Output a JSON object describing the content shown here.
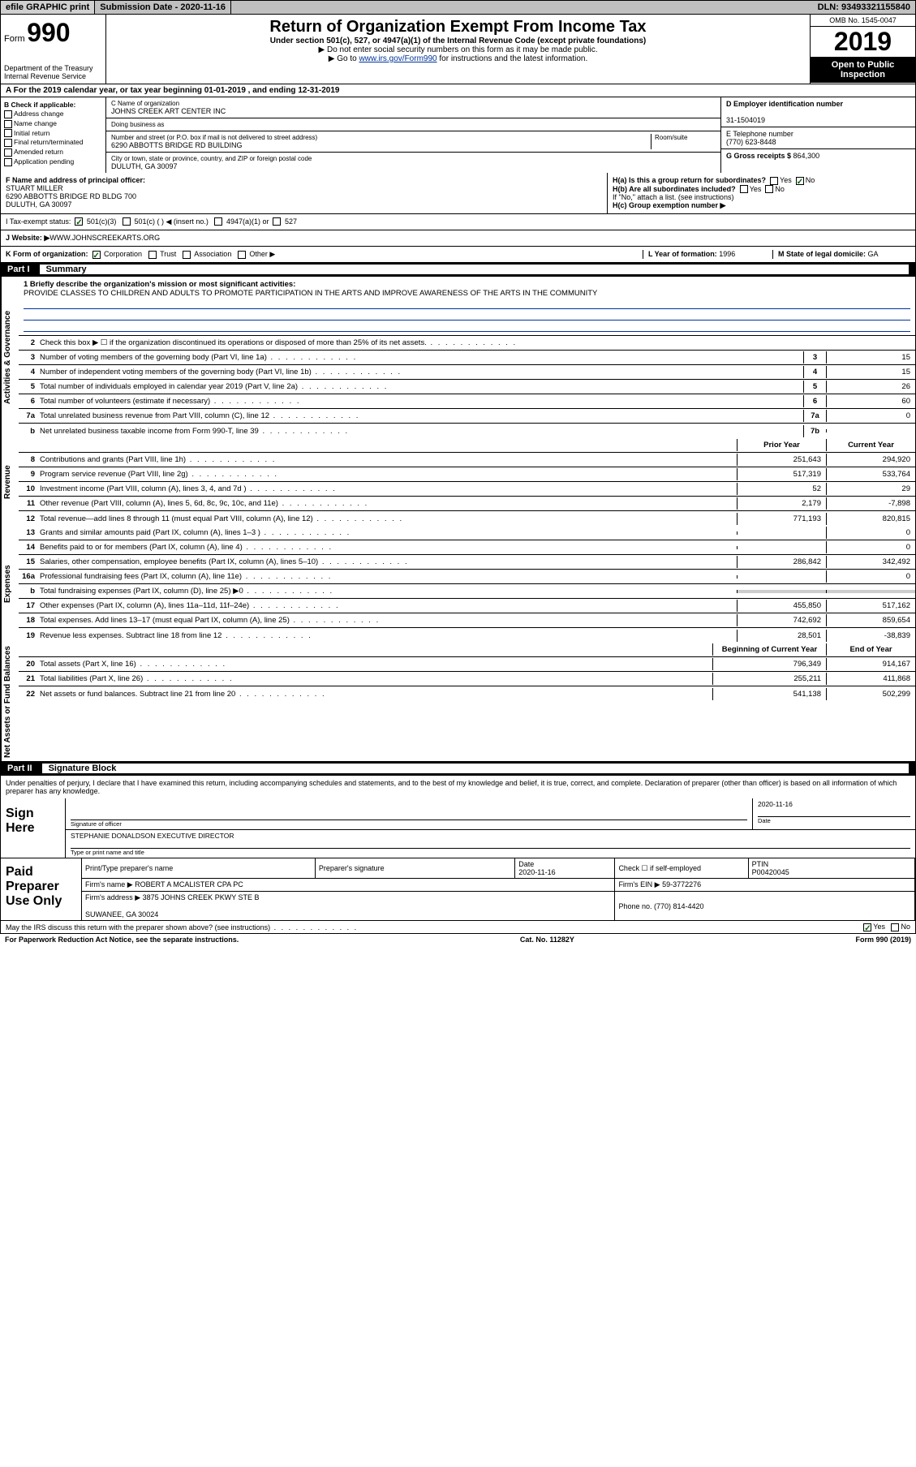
{
  "topbar": {
    "efile": "efile GRAPHIC print",
    "submission_label": "Submission Date - ",
    "submission_date": "2020-11-16",
    "dln_label": "DLN: ",
    "dln": "93493321155840"
  },
  "header": {
    "form_word": "Form",
    "form_num": "990",
    "dept": "Department of the Treasury\nInternal Revenue Service",
    "title": "Return of Organization Exempt From Income Tax",
    "sub1": "Under section 501(c), 527, or 4947(a)(1) of the Internal Revenue Code (except private foundations)",
    "sub2": "▶ Do not enter social security numbers on this form as it may be made public.",
    "sub3_pre": "▶ Go to ",
    "sub3_link": "www.irs.gov/Form990",
    "sub3_post": " for instructions and the latest information.",
    "omb": "OMB No. 1545-0047",
    "year": "2019",
    "open": "Open to Public Inspection"
  },
  "row_a": "A For the 2019 calendar year, or tax year beginning 01-01-2019   , and ending 12-31-2019",
  "section_b": {
    "b_label": "B Check if applicable:",
    "b_opts": [
      "Address change",
      "Name change",
      "Initial return",
      "Final return/terminated",
      "Amended return",
      "Application pending"
    ],
    "c_name_label": "C Name of organization",
    "c_name": "JOHNS CREEK ART CENTER INC",
    "dba_label": "Doing business as",
    "dba": "",
    "addr_label": "Number and street (or P.O. box if mail is not delivered to street address)",
    "room_label": "Room/suite",
    "addr": "6290 ABBOTTS BRIDGE RD BUILDING",
    "city_label": "City or town, state or province, country, and ZIP or foreign postal code",
    "city": "DULUTH, GA  30097",
    "d_label": "D Employer identification number",
    "d_val": "31-1504019",
    "e_label": "E Telephone number",
    "e_val": "(770) 623-8448",
    "g_label": "G Gross receipts $ ",
    "g_val": "864,300"
  },
  "section_f": {
    "f_label": "F  Name and address of principal officer:",
    "f_name": "STUART MILLER",
    "f_addr1": "6290 ABBOTTS BRIDGE RD BLDG 700",
    "f_addr2": "DULUTH, GA  30097",
    "ha_label": "H(a)  Is this a group return for subordinates?",
    "ha_yes": "Yes",
    "ha_no": "No",
    "hb_label": "H(b)  Are all subordinates included?",
    "hb_yes": "Yes",
    "hb_no": "No",
    "hb_note": "If \"No,\" attach a list. (see instructions)",
    "hc_label": "H(c)  Group exemption number ▶"
  },
  "tax_status": {
    "label": "I   Tax-exempt status:",
    "opts": [
      "501(c)(3)",
      "501(c) (  ) ◀ (insert no.)",
      "4947(a)(1) or",
      "527"
    ]
  },
  "website": {
    "label": "J   Website: ▶ ",
    "val": "WWW.JOHNSCREEKARTS.ORG"
  },
  "row_k": {
    "k_label": "K Form of organization:",
    "k_opts": [
      "Corporation",
      "Trust",
      "Association",
      "Other ▶"
    ],
    "l_label": "L Year of formation: ",
    "l_val": "1996",
    "m_label": "M State of legal domicile: ",
    "m_val": "GA"
  },
  "part1": {
    "label": "Part I",
    "title": "Summary"
  },
  "mission": {
    "q": "1  Briefly describe the organization's mission or most significant activities:",
    "text": "PROVIDE CLASSES TO CHILDREN AND ADULTS TO PROMOTE PARTICIPATION IN THE ARTS AND IMPROVE AWARENESS OF THE ARTS IN THE COMMUNITY"
  },
  "vtabs": {
    "ag": "Activities & Governance",
    "rev": "Revenue",
    "exp": "Expenses",
    "net": "Net Assets or Fund Balances"
  },
  "lines_ag": [
    {
      "n": "2",
      "d": "Check this box ▶ ☐  if the organization discontinued its operations or disposed of more than 25% of its net assets."
    },
    {
      "n": "3",
      "d": "Number of voting members of the governing body (Part VI, line 1a)",
      "box": "3",
      "v": "15"
    },
    {
      "n": "4",
      "d": "Number of independent voting members of the governing body (Part VI, line 1b)",
      "box": "4",
      "v": "15"
    },
    {
      "n": "5",
      "d": "Total number of individuals employed in calendar year 2019 (Part V, line 2a)",
      "box": "5",
      "v": "26"
    },
    {
      "n": "6",
      "d": "Total number of volunteers (estimate if necessary)",
      "box": "6",
      "v": "60"
    },
    {
      "n": "7a",
      "d": "Total unrelated business revenue from Part VIII, column (C), line 12",
      "box": "7a",
      "v": "0"
    },
    {
      "n": "b",
      "d": "Net unrelated business taxable income from Form 990-T, line 39",
      "box": "7b",
      "v": ""
    }
  ],
  "col_headers": {
    "py": "Prior Year",
    "cy": "Current Year"
  },
  "lines_rev": [
    {
      "n": "8",
      "d": "Contributions and grants (Part VIII, line 1h)",
      "py": "251,643",
      "cy": "294,920"
    },
    {
      "n": "9",
      "d": "Program service revenue (Part VIII, line 2g)",
      "py": "517,319",
      "cy": "533,764"
    },
    {
      "n": "10",
      "d": "Investment income (Part VIII, column (A), lines 3, 4, and 7d )",
      "py": "52",
      "cy": "29"
    },
    {
      "n": "11",
      "d": "Other revenue (Part VIII, column (A), lines 5, 6d, 8c, 9c, 10c, and 11e)",
      "py": "2,179",
      "cy": "-7,898"
    },
    {
      "n": "12",
      "d": "Total revenue—add lines 8 through 11 (must equal Part VIII, column (A), line 12)",
      "py": "771,193",
      "cy": "820,815"
    }
  ],
  "lines_exp": [
    {
      "n": "13",
      "d": "Grants and similar amounts paid (Part IX, column (A), lines 1–3 )",
      "py": "",
      "cy": "0"
    },
    {
      "n": "14",
      "d": "Benefits paid to or for members (Part IX, column (A), line 4)",
      "py": "",
      "cy": "0"
    },
    {
      "n": "15",
      "d": "Salaries, other compensation, employee benefits (Part IX, column (A), lines 5–10)",
      "py": "286,842",
      "cy": "342,492"
    },
    {
      "n": "16a",
      "d": "Professional fundraising fees (Part IX, column (A), line 11e)",
      "py": "",
      "cy": "0"
    },
    {
      "n": "b",
      "d": "Total fundraising expenses (Part IX, column (D), line 25) ▶0",
      "py": "SHADE",
      "cy": "SHADE"
    },
    {
      "n": "17",
      "d": "Other expenses (Part IX, column (A), lines 11a–11d, 11f–24e)",
      "py": "455,850",
      "cy": "517,162"
    },
    {
      "n": "18",
      "d": "Total expenses. Add lines 13–17 (must equal Part IX, column (A), line 25)",
      "py": "742,692",
      "cy": "859,654"
    },
    {
      "n": "19",
      "d": "Revenue less expenses. Subtract line 18 from line 12",
      "py": "28,501",
      "cy": "-38,839"
    }
  ],
  "col_headers2": {
    "py": "Beginning of Current Year",
    "cy": "End of Year"
  },
  "lines_net": [
    {
      "n": "20",
      "d": "Total assets (Part X, line 16)",
      "py": "796,349",
      "cy": "914,167"
    },
    {
      "n": "21",
      "d": "Total liabilities (Part X, line 26)",
      "py": "255,211",
      "cy": "411,868"
    },
    {
      "n": "22",
      "d": "Net assets or fund balances. Subtract line 21 from line 20",
      "py": "541,138",
      "cy": "502,299"
    }
  ],
  "part2": {
    "label": "Part II",
    "title": "Signature Block"
  },
  "sig_intro": "Under penalties of perjury, I declare that I have examined this return, including accompanying schedules and statements, and to the best of my knowledge and belief, it is true, correct, and complete. Declaration of preparer (other than officer) is based on all information of which preparer has any knowledge.",
  "sign": {
    "label": "Sign Here",
    "sig_label": "Signature of officer",
    "date": "2020-11-16",
    "date_label": "Date",
    "name": "STEPHANIE DONALDSON  EXECUTIVE DIRECTOR",
    "name_label": "Type or print name and title"
  },
  "prep": {
    "label": "Paid Preparer Use Only",
    "h1": "Print/Type preparer's name",
    "h2": "Preparer's signature",
    "h3": "Date",
    "h3v": "2020-11-16",
    "h4": "Check ☐ if self-employed",
    "h5": "PTIN",
    "h5v": "P00420045",
    "firm_name_label": "Firm's name    ▶ ",
    "firm_name": "ROBERT A MCALISTER CPA PC",
    "firm_ein_label": "Firm's EIN ▶ ",
    "firm_ein": "59-3772276",
    "firm_addr_label": "Firm's address ▶ ",
    "firm_addr1": "3875 JOHNS CREEK PKWY STE B",
    "firm_addr2": "SUWANEE, GA  30024",
    "phone_label": "Phone no. ",
    "phone": "(770) 814-4420"
  },
  "discuss": {
    "q": "May the IRS discuss this return with the preparer shown above? (see instructions)",
    "yes": "Yes",
    "no": "No"
  },
  "footer": {
    "left": "For Paperwork Reduction Act Notice, see the separate instructions.",
    "mid": "Cat. No. 11282Y",
    "right": "Form 990 (2019)"
  }
}
